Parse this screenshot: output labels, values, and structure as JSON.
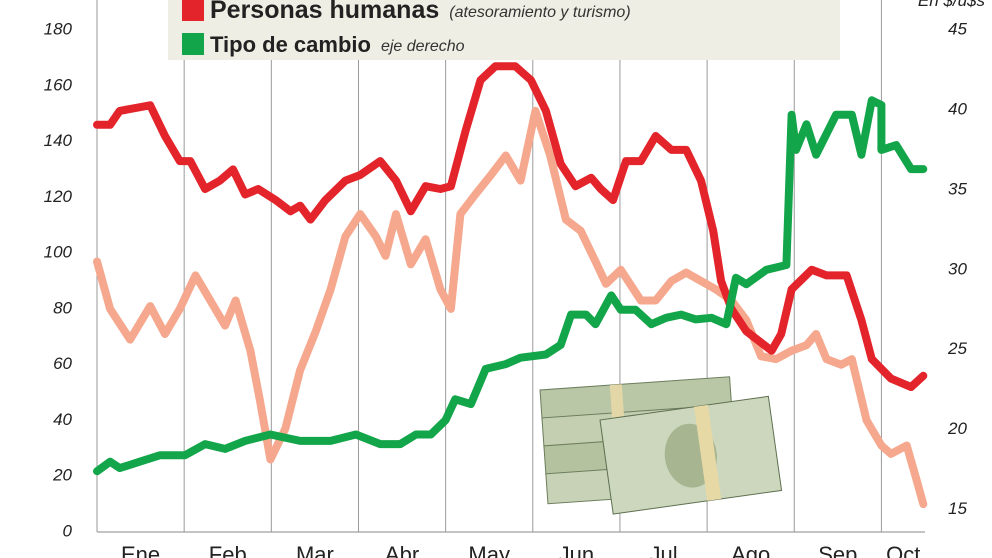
{
  "chart_data": {
    "type": "line",
    "annotations": {
      "red_note": "(atesoramiento y turismo)",
      "green_note": "eje derecho",
      "unit_right": "En $/u$s"
    },
    "months": [
      "Ene",
      "Feb",
      "Mar",
      "Abr",
      "May",
      "Jun",
      "Jul",
      "Ago",
      "Sep",
      "Oct"
    ],
    "xlim": [
      0,
      9.5
    ],
    "xticks": [
      0,
      1,
      2,
      3,
      4,
      5,
      6,
      7,
      8,
      9
    ],
    "ylim": [
      0,
      180
    ],
    "yticks": [
      0,
      20,
      40,
      60,
      80,
      100,
      120,
      140,
      160,
      180
    ],
    "y2lim": [
      13.6,
      45
    ],
    "y2ticks": [
      15,
      20,
      25,
      30,
      35,
      40,
      45
    ],
    "grid": "vertical",
    "series": [
      {
        "color": "#f5a88e",
        "x": [
          0,
          0.15,
          0.38,
          0.61,
          0.78,
          0.95,
          1.13,
          1.3,
          1.47,
          1.59,
          1.76,
          1.87,
          1.99,
          2.16,
          2.33,
          2.51,
          2.68,
          2.85,
          3.02,
          3.2,
          3.31,
          3.43,
          3.6,
          3.77,
          3.94,
          4.06,
          4.17,
          4.34,
          4.52,
          4.69,
          4.86,
          5.03,
          5.2,
          5.38,
          5.55,
          5.72,
          5.84,
          6.01,
          6.24,
          6.41,
          6.59,
          6.76,
          6.93,
          7.1,
          7.28,
          7.45,
          7.62,
          7.79,
          7.97,
          8.14,
          8.25,
          8.37,
          8.54,
          8.66,
          8.83,
          9.0,
          9.11,
          9.29,
          9.4,
          9.48
        ],
        "values": [
          97,
          80,
          69,
          81,
          71,
          80,
          92,
          83,
          74,
          83,
          65,
          47,
          26,
          37,
          58,
          72,
          87,
          106,
          114,
          106,
          99,
          114,
          96,
          105,
          87,
          80,
          114,
          121,
          128,
          135,
          126,
          151,
          135,
          112,
          108,
          97,
          89,
          94,
          83,
          83,
          90,
          93,
          90,
          87,
          83,
          76,
          63,
          62,
          65,
          67,
          71,
          62,
          60,
          62,
          40,
          31,
          28,
          31,
          19,
          10
        ]
      },
      {
        "name": "Personas humanas",
        "color": "#e3242b",
        "x": [
          0,
          0.15,
          0.26,
          0.61,
          0.78,
          0.95,
          1.07,
          1.24,
          1.41,
          1.56,
          1.7,
          1.85,
          2.05,
          2.22,
          2.33,
          2.45,
          2.62,
          2.85,
          3.02,
          3.25,
          3.43,
          3.6,
          3.77,
          3.94,
          4.06,
          4.23,
          4.4,
          4.57,
          4.8,
          4.98,
          5.15,
          5.32,
          5.49,
          5.67,
          5.78,
          5.92,
          6.07,
          6.24,
          6.41,
          6.59,
          6.76,
          6.93,
          7.07,
          7.16,
          7.28,
          7.45,
          7.74,
          7.85,
          7.97,
          8.2,
          8.37,
          8.6,
          8.77,
          8.89,
          9.11,
          9.34,
          9.48
        ],
        "values": [
          146,
          146,
          151,
          153,
          142,
          133,
          133,
          123,
          126,
          130,
          121,
          123,
          119,
          115,
          117,
          112,
          119,
          126,
          128,
          133,
          126,
          115,
          124,
          123,
          124,
          144,
          162,
          167,
          167,
          162,
          151,
          132,
          124,
          127,
          123,
          119,
          133,
          133,
          142,
          137,
          137,
          126,
          108,
          90,
          80,
          72,
          65,
          71,
          87,
          94,
          92,
          92,
          76,
          62,
          55,
          52,
          56
        ]
      },
      {
        "name": "Tipo de cambio",
        "color": "#13a54a",
        "axis": "y2",
        "x": [
          0,
          0.15,
          0.26,
          0.49,
          0.72,
          1.01,
          1.24,
          1.47,
          1.7,
          1.99,
          2.33,
          2.68,
          2.97,
          3.25,
          3.48,
          3.66,
          3.83,
          4.0,
          4.11,
          4.29,
          4.46,
          4.69,
          4.86,
          5.15,
          5.32,
          5.44,
          5.61,
          5.72,
          5.9,
          6.01,
          6.18,
          6.36,
          6.53,
          6.7,
          6.87,
          7.05,
          7.22,
          7.33,
          7.45,
          7.68,
          7.91,
          7.97,
          8.02,
          8.14,
          8.25,
          8.48,
          8.66,
          8.77,
          8.89,
          9.0,
          9.0,
          9.17,
          9.34,
          9.48
        ],
        "values": [
          17.4,
          18.0,
          17.6,
          18.0,
          18.4,
          18.4,
          19.1,
          18.8,
          19.3,
          19.7,
          19.3,
          19.3,
          19.7,
          19.1,
          19.1,
          19.7,
          19.7,
          20.6,
          21.9,
          21.6,
          23.8,
          24.1,
          24.5,
          24.7,
          25.3,
          27.2,
          27.2,
          26.6,
          28.4,
          27.5,
          27.5,
          26.6,
          27.0,
          27.2,
          26.9,
          27.0,
          26.6,
          29.5,
          29.1,
          30.0,
          30.3,
          39.7,
          37.5,
          39.1,
          37.2,
          39.7,
          39.7,
          37.2,
          40.6,
          40.3,
          37.5,
          37.8,
          36.3,
          36.3
        ]
      }
    ]
  }
}
